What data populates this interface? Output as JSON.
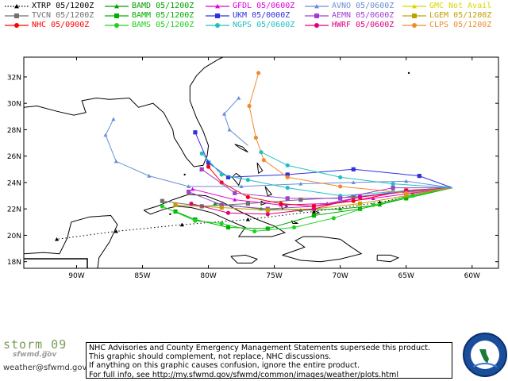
{
  "legend": [
    {
      "label": "XTRP  05/1200Z",
      "color": "#000000",
      "marker": "triangle",
      "dashed": true
    },
    {
      "label": "BAMD 05/1200Z",
      "color": "#00a000",
      "marker": "triangle",
      "dashed": false
    },
    {
      "label": "GFDL  05/0600Z",
      "color": "#e000e0",
      "marker": "triangle",
      "dashed": false
    },
    {
      "label": "AVNO  05/0600Z",
      "color": "#6a8ed8",
      "marker": "triangle",
      "dashed": false
    },
    {
      "label": "GMC  Not Avail",
      "color": "#d8d800",
      "marker": "triangle",
      "dashed": false
    },
    {
      "label": "TVCN  05/1200Z",
      "color": "#707070",
      "marker": "square",
      "dashed": false
    },
    {
      "label": "BAMM 05/1200Z",
      "color": "#00b000",
      "marker": "square",
      "dashed": false
    },
    {
      "label": "UKM   05/0000Z",
      "color": "#3030e0",
      "marker": "square",
      "dashed": false
    },
    {
      "label": "AEMN  05/0600Z",
      "color": "#a040d0",
      "marker": "square",
      "dashed": false
    },
    {
      "label": "LGEM  05/1200Z",
      "color": "#c0a000",
      "marker": "square",
      "dashed": false
    },
    {
      "label": "NHC  05/0900Z",
      "color": "#ff0000",
      "marker": "circle",
      "dashed": false
    },
    {
      "label": "BAMS 05/1200Z",
      "color": "#20d020",
      "marker": "circle",
      "dashed": false
    },
    {
      "label": "NGPS  05/0600Z",
      "color": "#20c0c0",
      "marker": "circle",
      "dashed": false
    },
    {
      "label": "HWRF  05/0600Z",
      "color": "#e00080",
      "marker": "circle",
      "dashed": false
    },
    {
      "label": "CLPS  05/1200Z",
      "color": "#f08a30",
      "marker": "circle",
      "dashed": false
    }
  ],
  "map": {
    "lon_range": [
      -94,
      -58
    ],
    "lat_range": [
      17.5,
      33.5
    ],
    "lat_ticks": [
      18,
      20,
      22,
      24,
      26,
      28,
      30,
      32
    ],
    "lat_labels": [
      "18N",
      "20N",
      "22N",
      "24N",
      "26N",
      "28N",
      "30N",
      "32N"
    ],
    "lon_ticks": [
      -90,
      -85,
      -80,
      -75,
      -70,
      -65,
      -60
    ],
    "lon_labels": [
      "90W",
      "85W",
      "80W",
      "75W",
      "70W",
      "65W",
      "60W"
    ]
  },
  "footer": {
    "storm": "storm_09",
    "brand": "sfwmd.gov",
    "email": "weather@sfwmd.gov",
    "notice": [
      "NHC Advisories and County Emergency Management Statements supersede this product.",
      "This graphic should complement, not replace, NHC discussions.",
      "If anything on this graphic causes confusion, ignore the entire product.",
      "For full info, see  http://my.sfwmd.gov/sfwmd/common/images/weather/plots.html"
    ]
  }
}
